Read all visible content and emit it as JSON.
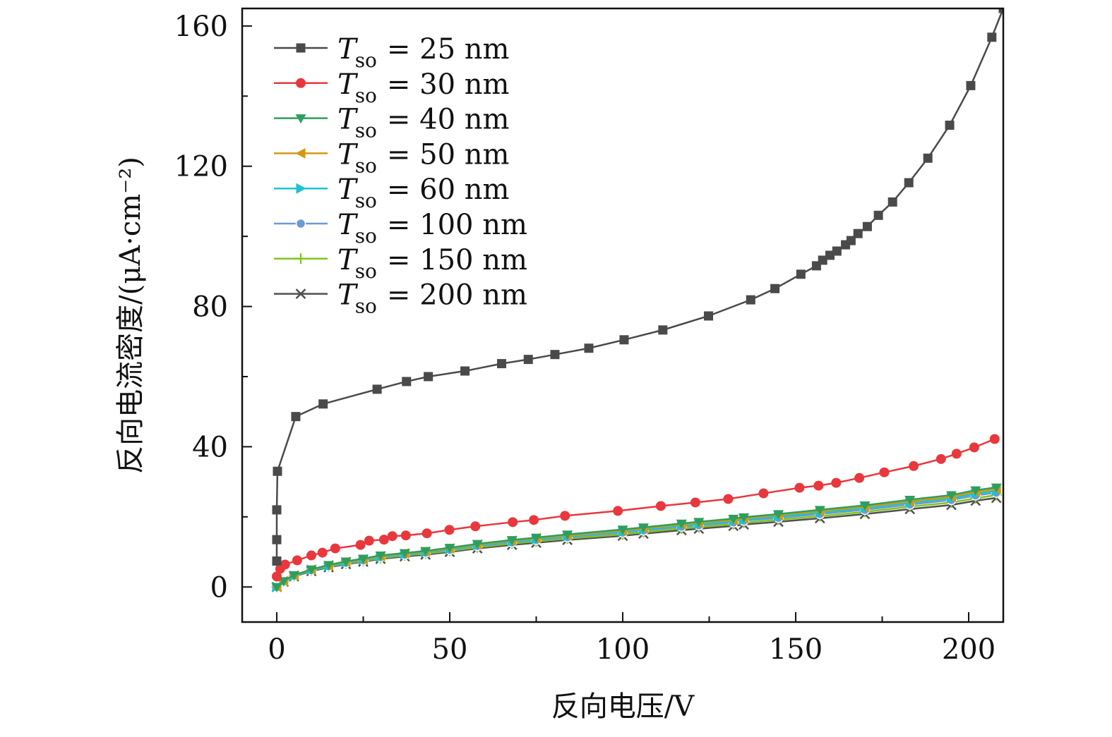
{
  "chart_data": {
    "type": "line",
    "title": "",
    "xlabel": "反向电压/V",
    "ylabel": "反向电流密度/(μA·cm⁻²)",
    "xlim": [
      -10,
      210
    ],
    "ylim": [
      -10,
      165
    ],
    "xticks": [
      0,
      50,
      100,
      150,
      200
    ],
    "xtick_labels": [
      "0",
      "50",
      "100",
      "150",
      "200"
    ],
    "yticks": [
      0,
      40,
      80,
      120,
      160
    ],
    "ytick_labels": [
      "0",
      "40",
      "80",
      "120",
      "160"
    ],
    "grid": false,
    "legend_position": "top-left",
    "series": [
      {
        "name": "Tso = 25 nm",
        "var": "T",
        "sub": "so",
        "rest": "= 25 nm",
        "color": "#4a4a4a",
        "marker": "square",
        "x": [
          0,
          0,
          0,
          0.2,
          5.5,
          13.4,
          29,
          37.5,
          43.8,
          54.4,
          65,
          72.7,
          80.4,
          90.2,
          100.4,
          111.6,
          124.8,
          137,
          144,
          151.5,
          156,
          157.8,
          159.9,
          161.9,
          164.4,
          166,
          168,
          170.7,
          173.9,
          178,
          182.7,
          188.2,
          194.5,
          200.6,
          206.7,
          210
        ],
        "y": [
          7.4,
          13.5,
          22,
          33,
          48.6,
          52.2,
          56.4,
          58.6,
          60,
          61.6,
          63.7,
          64.9,
          66.3,
          68.1,
          70.5,
          73.3,
          77.3,
          81.9,
          85.1,
          89.2,
          91.6,
          93.2,
          94.6,
          95.8,
          97.6,
          98.8,
          100.8,
          102.8,
          106,
          109.8,
          115.3,
          122.3,
          131.7,
          143,
          156.8,
          165
        ]
      },
      {
        "name": "Tso = 30 nm",
        "var": "T",
        "sub": "so",
        "rest": "= 30 nm",
        "color": "#e8383d",
        "marker": "circle",
        "x": [
          0,
          1,
          2.4,
          5.9,
          10,
          13.2,
          16.9,
          24.2,
          26.7,
          31,
          33.4,
          37.3,
          43.4,
          49.9,
          57.4,
          68.2,
          74.3,
          83.3,
          98.6,
          111,
          121,
          130.5,
          140.7,
          151.1,
          156.6,
          161.7,
          168.4,
          175.6,
          184.1,
          192,
          196.5,
          201.6,
          207.5
        ],
        "y": [
          3,
          5.2,
          6.4,
          7.6,
          9,
          9.8,
          11,
          12,
          13.2,
          13.5,
          14.5,
          14.7,
          15.3,
          16.3,
          17.3,
          18.5,
          19.1,
          20.3,
          21.7,
          23.1,
          24.1,
          25.1,
          26.7,
          28.3,
          28.9,
          29.7,
          31.1,
          32.7,
          34.5,
          36.5,
          38,
          39.8,
          42.2
        ]
      },
      {
        "name": "Tso = 40 nm",
        "var": "T",
        "sub": "so",
        "rest": "= 40 nm",
        "color": "#2e9e5e",
        "marker": "triangle-down",
        "x": [
          0,
          2,
          5,
          10,
          15,
          20,
          25,
          30,
          37,
          43,
          50,
          58,
          68,
          75,
          84,
          100,
          106,
          117,
          122,
          132,
          135,
          145,
          157,
          170,
          183,
          195,
          202,
          208
        ],
        "y": [
          0,
          1.7,
          3.4,
          5,
          6.3,
          7.3,
          8.1,
          9,
          9.7,
          10.3,
          11.2,
          12.3,
          13.4,
          14.1,
          15,
          16.4,
          17,
          18.1,
          18.6,
          19.5,
          19.9,
          20.8,
          22,
          23.3,
          24.9,
          26.2,
          27.6,
          28.4
        ]
      },
      {
        "name": "Tso = 50 nm",
        "var": "T",
        "sub": "so",
        "rest": "= 50 nm",
        "color": "#d19a12",
        "marker": "triangle-left",
        "x": [
          0,
          2,
          5,
          10,
          15,
          20,
          25,
          30,
          37,
          43,
          50,
          58,
          68,
          75,
          84,
          100,
          106,
          117,
          122,
          132,
          135,
          145,
          157,
          170,
          183,
          195,
          202,
          208
        ],
        "y": [
          0,
          1.7,
          3.3,
          5,
          6.2,
          7.2,
          7.9,
          8.8,
          9.6,
          10.1,
          11,
          12.1,
          13.2,
          13.9,
          14.7,
          16.1,
          16.7,
          17.8,
          18.3,
          19.1,
          19.6,
          20.5,
          21.6,
          22.9,
          24.4,
          25.7,
          27.1,
          27.9
        ]
      },
      {
        "name": "Tso = 60 nm",
        "var": "T",
        "sub": "so",
        "rest": "= 60 nm",
        "color": "#1cc3cf",
        "marker": "triangle-right",
        "x": [
          0,
          2,
          5,
          10,
          15,
          20,
          25,
          30,
          37,
          43,
          50,
          58,
          68,
          75,
          84,
          100,
          106,
          117,
          122,
          132,
          135,
          145,
          157,
          170,
          183,
          195,
          202,
          208
        ],
        "y": [
          0,
          1.6,
          3.2,
          4.9,
          6,
          7,
          7.8,
          8.6,
          9.4,
          9.9,
          10.8,
          11.9,
          13,
          13.6,
          14.5,
          15.8,
          16.4,
          17.5,
          17.9,
          18.8,
          19.2,
          20.1,
          21.2,
          22.5,
          24,
          25.3,
          26.6,
          27.4
        ]
      },
      {
        "name": "Tso = 100 nm",
        "var": "T",
        "sub": "so",
        "rest": "= 100 nm",
        "color": "#6b9bd2",
        "marker": "circle-shaded",
        "x": [
          0,
          2,
          5,
          10,
          15,
          20,
          25,
          30,
          37,
          43,
          50,
          58,
          68,
          75,
          84,
          100,
          106,
          117,
          122,
          132,
          135,
          145,
          157,
          170,
          183,
          195,
          202,
          208
        ],
        "y": [
          0,
          1.6,
          3.2,
          4.8,
          5.9,
          6.9,
          7.6,
          8.5,
          9.2,
          9.8,
          10.6,
          11.7,
          12.7,
          13.4,
          14.2,
          15.5,
          16.1,
          17.2,
          17.6,
          18.4,
          18.9,
          19.7,
          20.8,
          22,
          23.5,
          24.8,
          26.1,
          26.9
        ]
      },
      {
        "name": "Tso = 150 nm",
        "var": "T",
        "sub": "so",
        "rest": "= 150 nm",
        "color": "#7fc41c",
        "marker": "plus",
        "x": [
          0,
          2,
          5,
          10,
          15,
          20,
          25,
          30,
          37,
          43,
          50,
          58,
          68,
          75,
          84,
          100,
          106,
          117,
          122,
          132,
          135,
          145,
          157,
          170,
          183,
          195,
          202,
          208
        ],
        "y": [
          0,
          1.6,
          3.1,
          4.7,
          5.8,
          6.7,
          7.4,
          8.2,
          9,
          9.5,
          10.3,
          11.3,
          12.4,
          13,
          13.8,
          15,
          15.6,
          16.7,
          17.1,
          17.9,
          18.3,
          19.2,
          20.2,
          21.4,
          22.9,
          24.1,
          25.3,
          26.2
        ]
      },
      {
        "name": "Tso = 200 nm",
        "var": "T",
        "sub": "so",
        "rest": "= 200 nm",
        "color": "#505050",
        "marker": "cross",
        "x": [
          0,
          2,
          5,
          10,
          15,
          20,
          25,
          30,
          37,
          43,
          50,
          58,
          68,
          75,
          84,
          100,
          106,
          117,
          122,
          132,
          135,
          145,
          157,
          170,
          183,
          195,
          202,
          208
        ],
        "y": [
          0,
          1.5,
          3,
          4.5,
          5.6,
          6.5,
          7.2,
          8,
          8.7,
          9.2,
          10,
          11,
          12,
          12.6,
          13.4,
          14.6,
          15.2,
          16.2,
          16.6,
          17.4,
          17.8,
          18.6,
          19.6,
          20.8,
          22.2,
          23.4,
          24.6,
          25.4
        ]
      }
    ]
  }
}
